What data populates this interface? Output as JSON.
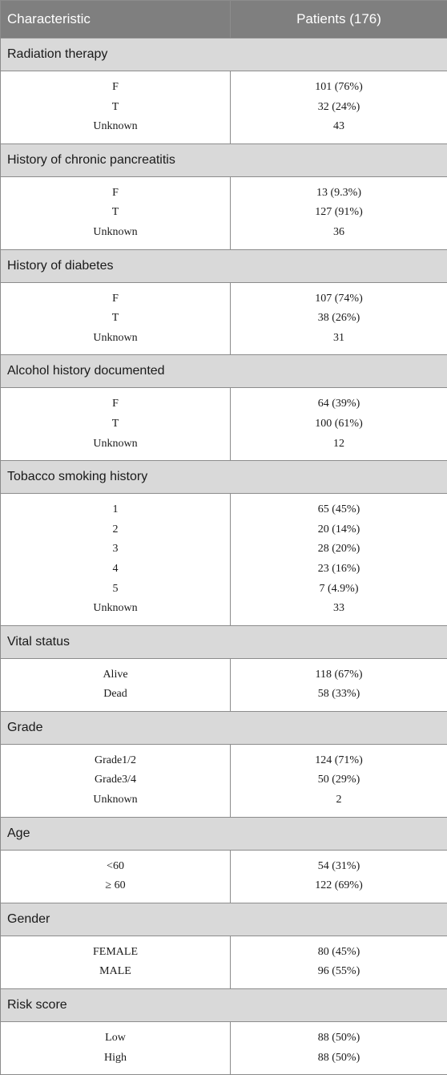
{
  "table": {
    "headers": [
      "Characteristic",
      "Patients (176)"
    ],
    "sections": [
      {
        "title": "Radiation therapy",
        "rows": [
          [
            "F",
            "101 (76%)"
          ],
          [
            "T",
            "32 (24%)"
          ],
          [
            "Unknown",
            "43"
          ]
        ]
      },
      {
        "title": "History of chronic pancreatitis",
        "rows": [
          [
            "F",
            "13 (9.3%)"
          ],
          [
            "T",
            "127 (91%)"
          ],
          [
            "Unknown",
            "36"
          ]
        ]
      },
      {
        "title": "History of diabetes",
        "rows": [
          [
            "F",
            "107 (74%)"
          ],
          [
            "T",
            "38 (26%)"
          ],
          [
            "Unknown",
            "31"
          ]
        ]
      },
      {
        "title": "Alcohol history documented",
        "rows": [
          [
            "F",
            "64 (39%)"
          ],
          [
            "T",
            "100 (61%)"
          ],
          [
            "Unknown",
            "12"
          ]
        ]
      },
      {
        "title": "Tobacco smoking history",
        "rows": [
          [
            "1",
            "65 (45%)"
          ],
          [
            "2",
            "20 (14%)"
          ],
          [
            "3",
            "28 (20%)"
          ],
          [
            "4",
            "23 (16%)"
          ],
          [
            "5",
            "7 (4.9%)"
          ],
          [
            "Unknown",
            "33"
          ]
        ]
      },
      {
        "title": "Vital status",
        "rows": [
          [
            "Alive",
            "118 (67%)"
          ],
          [
            "Dead",
            "58 (33%)"
          ]
        ]
      },
      {
        "title": "Grade",
        "rows": [
          [
            "Grade1/2",
            "124 (71%)"
          ],
          [
            "Grade3/4",
            "50 (29%)"
          ],
          [
            "Unknown",
            "2"
          ]
        ]
      },
      {
        "title": "Age",
        "rows": [
          [
            "<60",
            "54 (31%)"
          ],
          [
            "≥ 60",
            "122 (69%)"
          ]
        ]
      },
      {
        "title": "Gender",
        "rows": [
          [
            "FEMALE",
            "80 (45%)"
          ],
          [
            "MALE",
            "96 (55%)"
          ]
        ]
      },
      {
        "title": "Risk score",
        "rows": [
          [
            "Low",
            "88 (50%)"
          ],
          [
            "High",
            "88 (50%)"
          ]
        ]
      }
    ]
  }
}
